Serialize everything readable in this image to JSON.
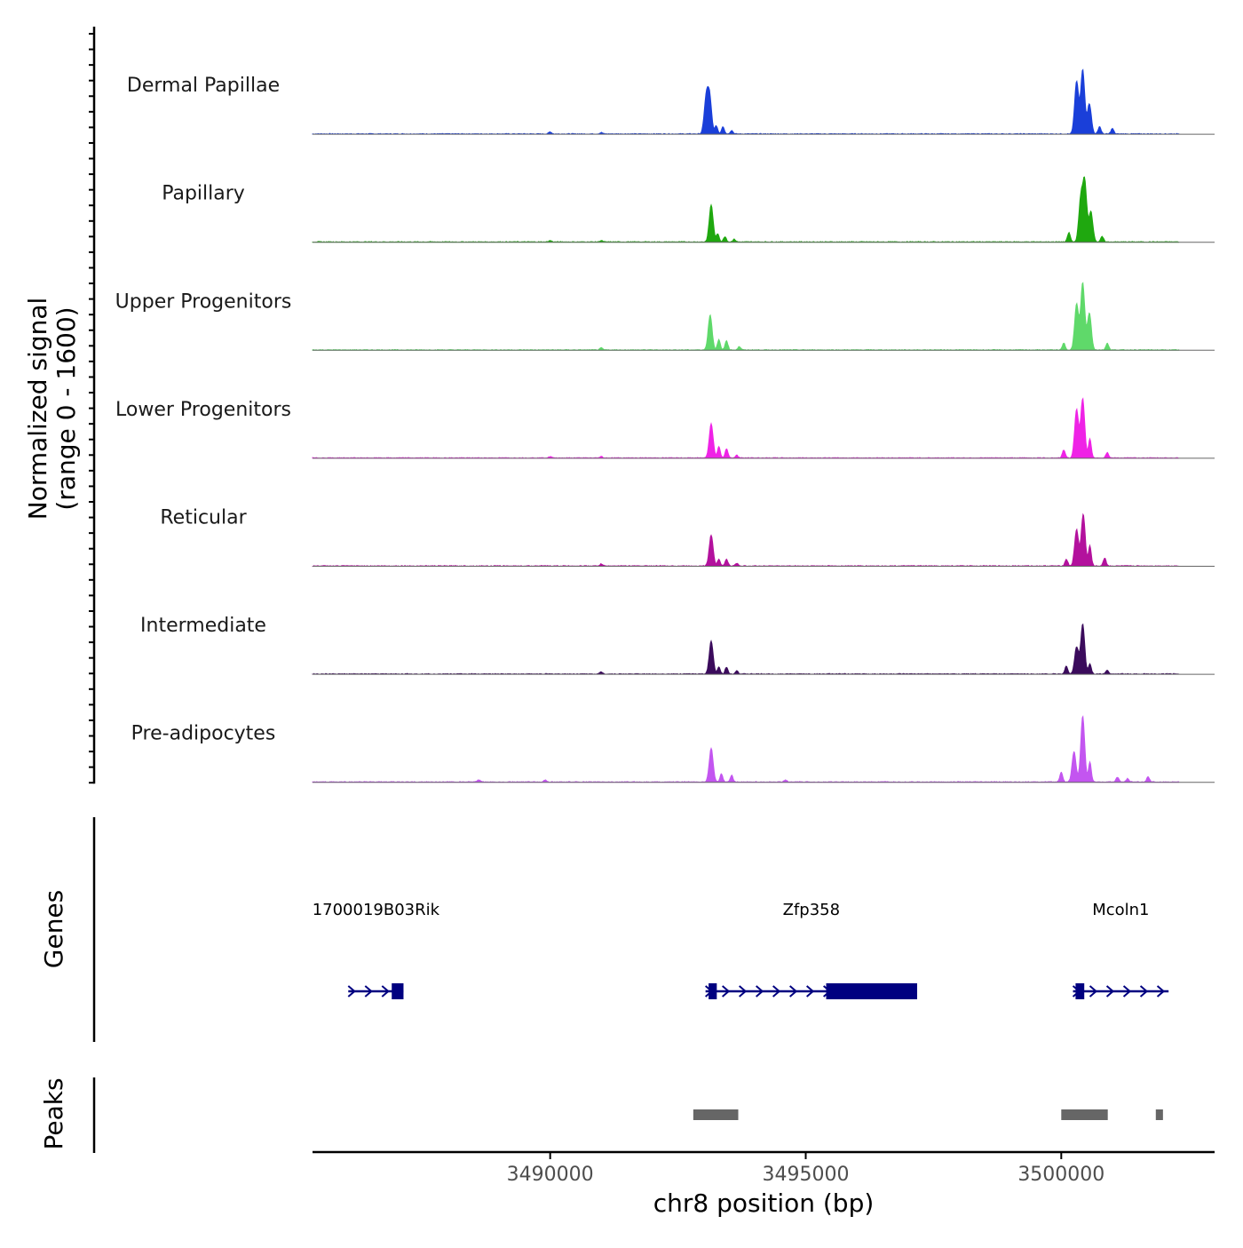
{
  "chart_data": {
    "type": "area",
    "title": "",
    "xlabel": "chr8 position (bp)",
    "ylabel_line1": "Normalized signal",
    "ylabel_line2": "(range 0 - 1600)",
    "y_range": [
      0,
      1600
    ],
    "x_range": [
      3485350,
      3503000
    ],
    "x_ticks": [
      {
        "value": 3490000,
        "label": "3490000"
      },
      {
        "value": 3495000,
        "label": "3495000"
      },
      {
        "value": 3500000,
        "label": "3500000"
      }
    ],
    "signal_extent": [
      3485350,
      3502300
    ],
    "tracks": [
      {
        "name": "Dermal Papillae",
        "color": "#1a3fd9",
        "peaks": [
          [
            3493050,
            0.51
          ],
          [
            3493120,
            0.54
          ],
          [
            3493250,
            0.12
          ],
          [
            3493380,
            0.11
          ],
          [
            3493550,
            0.05
          ],
          [
            3500300,
            0.78
          ],
          [
            3500420,
            0.95
          ],
          [
            3500550,
            0.45
          ],
          [
            3500750,
            0.11
          ],
          [
            3501000,
            0.08
          ],
          [
            3490000,
            0.03
          ],
          [
            3491000,
            0.02
          ]
        ]
      },
      {
        "name": "Papillary",
        "color": "#1fa80f",
        "peaks": [
          [
            3493150,
            0.55
          ],
          [
            3493280,
            0.12
          ],
          [
            3493420,
            0.08
          ],
          [
            3493600,
            0.04
          ],
          [
            3500150,
            0.14
          ],
          [
            3500380,
            0.62
          ],
          [
            3500460,
            0.87
          ],
          [
            3500580,
            0.45
          ],
          [
            3500800,
            0.08
          ],
          [
            3490000,
            0.02
          ],
          [
            3491000,
            0.02
          ]
        ]
      },
      {
        "name": "Upper Progenitors",
        "color": "#5fd96a",
        "peaks": [
          [
            3493130,
            0.52
          ],
          [
            3493300,
            0.15
          ],
          [
            3493450,
            0.14
          ],
          [
            3493700,
            0.05
          ],
          [
            3500050,
            0.1
          ],
          [
            3500300,
            0.68
          ],
          [
            3500420,
            1.0
          ],
          [
            3500550,
            0.55
          ],
          [
            3500900,
            0.1
          ],
          [
            3491000,
            0.03
          ]
        ]
      },
      {
        "name": "Lower Progenitors",
        "color": "#ef22e6",
        "peaks": [
          [
            3493150,
            0.51
          ],
          [
            3493300,
            0.17
          ],
          [
            3493450,
            0.14
          ],
          [
            3493650,
            0.04
          ],
          [
            3500050,
            0.12
          ],
          [
            3500300,
            0.72
          ],
          [
            3500420,
            0.88
          ],
          [
            3500560,
            0.28
          ],
          [
            3500900,
            0.08
          ],
          [
            3490000,
            0.02
          ],
          [
            3491000,
            0.02
          ]
        ]
      },
      {
        "name": "Reticular",
        "color": "#b3119d",
        "peaks": [
          [
            3493150,
            0.46
          ],
          [
            3493300,
            0.1
          ],
          [
            3493450,
            0.1
          ],
          [
            3493650,
            0.04
          ],
          [
            3500100,
            0.1
          ],
          [
            3500300,
            0.54
          ],
          [
            3500430,
            0.77
          ],
          [
            3500560,
            0.3
          ],
          [
            3500850,
            0.12
          ],
          [
            3491000,
            0.03
          ]
        ]
      },
      {
        "name": "Intermediate",
        "color": "#3b0b5c",
        "peaks": [
          [
            3493150,
            0.49
          ],
          [
            3493300,
            0.1
          ],
          [
            3493450,
            0.1
          ],
          [
            3493650,
            0.05
          ],
          [
            3500100,
            0.12
          ],
          [
            3500300,
            0.4
          ],
          [
            3500420,
            0.74
          ],
          [
            3500560,
            0.15
          ],
          [
            3500900,
            0.06
          ],
          [
            3491000,
            0.03
          ]
        ]
      },
      {
        "name": "Pre-adipocytes",
        "color": "#c355f0",
        "peaks": [
          [
            3493150,
            0.5
          ],
          [
            3493350,
            0.12
          ],
          [
            3493550,
            0.1
          ],
          [
            3500000,
            0.15
          ],
          [
            3500250,
            0.45
          ],
          [
            3500420,
            0.98
          ],
          [
            3500560,
            0.3
          ],
          [
            3501100,
            0.07
          ],
          [
            3501700,
            0.08
          ],
          [
            3501300,
            0.05
          ],
          [
            3494600,
            0.03
          ],
          [
            3489900,
            0.03
          ],
          [
            3488600,
            0.03
          ]
        ]
      }
    ],
    "genes_label": "Genes",
    "genes": [
      {
        "name": "1700019B03Rik",
        "start": 3486050,
        "end": 3487130,
        "exons": [
          [
            3486900,
            3487130
          ]
        ],
        "strand": "+"
      },
      {
        "name": "Zfp358",
        "start": 3493040,
        "end": 3497180,
        "exons": [
          [
            3493100,
            3493260
          ],
          [
            3495400,
            3497180
          ]
        ],
        "strand": "+"
      },
      {
        "name": "Mcoln1",
        "start": 3500230,
        "end": 3502100,
        "exons": [
          [
            3500280,
            3500450
          ]
        ],
        "strand": "+"
      }
    ],
    "peaks_label": "Peaks",
    "peak_regions": [
      [
        3492800,
        3493680
      ],
      [
        3500000,
        3500910
      ],
      [
        3501850,
        3501990
      ]
    ]
  }
}
